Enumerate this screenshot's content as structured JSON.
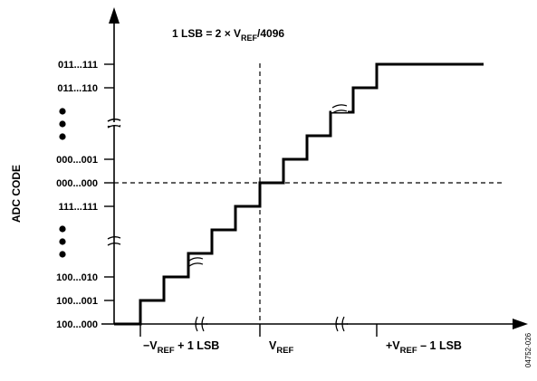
{
  "formula": {
    "prefix": "1 LSB = 2 × V",
    "sub": "REF",
    "suffix": "/4096"
  },
  "y_axis_title": "ADC CODE",
  "codes": [
    "011...111",
    "011...110",
    "000...001",
    "000...000",
    "111...111",
    "100...010",
    "100...001",
    "100...000"
  ],
  "x_labels": {
    "neg": {
      "minus": "−V",
      "sub": "REF",
      "tail": " + 1 LSB"
    },
    "zero": {
      "main": "V",
      "sub": "REF"
    },
    "pos": {
      "main": "+V",
      "sub": "REF",
      "tail": " – 1 LSB"
    }
  },
  "figure_id": "04752-026"
}
